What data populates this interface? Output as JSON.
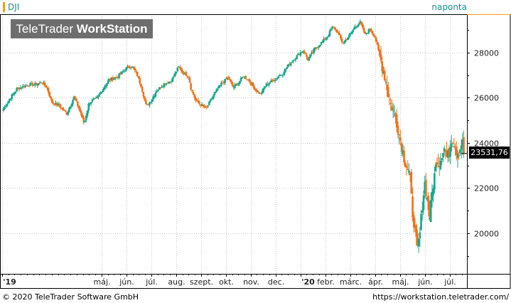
{
  "header": {
    "symbol": "DJI",
    "period": "naponta",
    "logo_light": "TeleTrader ",
    "logo_bold": "WorkStation"
  },
  "last_price": "23531,76",
  "footer": {
    "copyright": "© 2020 TeleTrader Software GmbH",
    "url": "https://workstation.teletrader.com/"
  },
  "colors": {
    "up": "#1aa68a",
    "down": "#f0731c",
    "grid": "#c8c8c8",
    "accent": "#f39c12"
  },
  "chart_data": {
    "type": "candlestick",
    "title": "DJI",
    "ylim": [
      18200,
      29700
    ],
    "y_ticks": [
      20000,
      22000,
      24000,
      26000,
      28000
    ],
    "y_tick_labels": [
      "20000",
      "22000",
      "24000",
      "26000",
      "28000"
    ],
    "x_ticks": [
      "'19",
      "máj.",
      "jún.",
      "júl.",
      "aug.",
      "szept.",
      "okt.",
      "nov.",
      "dec.",
      "'20",
      "febr.",
      "márc.",
      "ápr.",
      "máj.",
      "jún.",
      "júl."
    ],
    "x_tick_months": [
      0,
      4,
      5,
      6,
      7,
      8,
      9,
      10,
      11,
      12,
      13,
      14,
      15,
      16,
      17,
      18
    ],
    "x_range_months": [
      0,
      18.7
    ],
    "grid": true,
    "last_value": 23531.76,
    "close_path": [
      [
        0.05,
        25500
      ],
      [
        0.3,
        25950
      ],
      [
        0.6,
        26400
      ],
      [
        1.0,
        26550
      ],
      [
        1.4,
        26600
      ],
      [
        1.6,
        26700
      ],
      [
        1.8,
        26450
      ],
      [
        2.0,
        25800
      ],
      [
        2.3,
        25650
      ],
      [
        2.6,
        25300
      ],
      [
        2.9,
        26050
      ],
      [
        3.1,
        25500
      ],
      [
        3.3,
        24850
      ],
      [
        3.5,
        25800
      ],
      [
        3.8,
        25950
      ],
      [
        4.0,
        26300
      ],
      [
        4.3,
        26800
      ],
      [
        4.6,
        26900
      ],
      [
        5.0,
        27300
      ],
      [
        5.2,
        27400
      ],
      [
        5.4,
        27100
      ],
      [
        5.6,
        26500
      ],
      [
        5.8,
        25600
      ],
      [
        6.0,
        25900
      ],
      [
        6.2,
        26300
      ],
      [
        6.5,
        26600
      ],
      [
        6.8,
        26750
      ],
      [
        7.1,
        27350
      ],
      [
        7.3,
        27100
      ],
      [
        7.5,
        26950
      ],
      [
        7.6,
        26400
      ],
      [
        7.8,
        25850
      ],
      [
        8.0,
        25700
      ],
      [
        8.2,
        25500
      ],
      [
        8.5,
        26100
      ],
      [
        8.8,
        26600
      ],
      [
        9.1,
        26900
      ],
      [
        9.3,
        26450
      ],
      [
        9.5,
        26650
      ],
      [
        9.7,
        26950
      ],
      [
        9.9,
        26800
      ],
      [
        10.2,
        26350
      ],
      [
        10.4,
        26150
      ],
      [
        10.6,
        26550
      ],
      [
        10.8,
        26700
      ],
      [
        11.0,
        26850
      ],
      [
        11.3,
        27100
      ],
      [
        11.6,
        27550
      ],
      [
        11.9,
        27900
      ],
      [
        12.1,
        28100
      ],
      [
        12.3,
        27700
      ],
      [
        12.6,
        28200
      ],
      [
        12.9,
        28500
      ],
      [
        13.1,
        28750
      ],
      [
        13.3,
        29150
      ],
      [
        13.5,
        28900
      ],
      [
        13.7,
        28400
      ],
      [
        14.0,
        28800
      ],
      [
        14.2,
        29150
      ],
      [
        14.4,
        29350
      ],
      [
        14.6,
        28800
      ],
      [
        14.8,
        29050
      ],
      [
        15.0,
        28700
      ],
      [
        15.2,
        27800
      ],
      [
        15.4,
        26900
      ],
      [
        15.6,
        25800
      ],
      [
        15.8,
        25300
      ],
      [
        16.0,
        24250
      ],
      [
        16.2,
        23200
      ],
      [
        16.4,
        22600
      ],
      [
        16.5,
        21000
      ],
      [
        16.6,
        20200
      ],
      [
        16.7,
        19200
      ],
      [
        16.8,
        19900
      ],
      [
        16.9,
        21200
      ],
      [
        17.0,
        22250
      ],
      [
        17.1,
        21500
      ],
      [
        17.2,
        20700
      ],
      [
        17.3,
        21800
      ],
      [
        17.4,
        22600
      ],
      [
        17.5,
        23350
      ],
      [
        17.6,
        23100
      ],
      [
        17.7,
        23600
      ],
      [
        17.8,
        23800
      ],
      [
        17.9,
        23300
      ],
      [
        18.0,
        23700
      ],
      [
        18.1,
        24300
      ],
      [
        18.2,
        23900
      ],
      [
        18.3,
        23600
      ],
      [
        18.4,
        23650
      ],
      [
        18.5,
        24100
      ],
      [
        18.6,
        23531.76
      ]
    ]
  }
}
